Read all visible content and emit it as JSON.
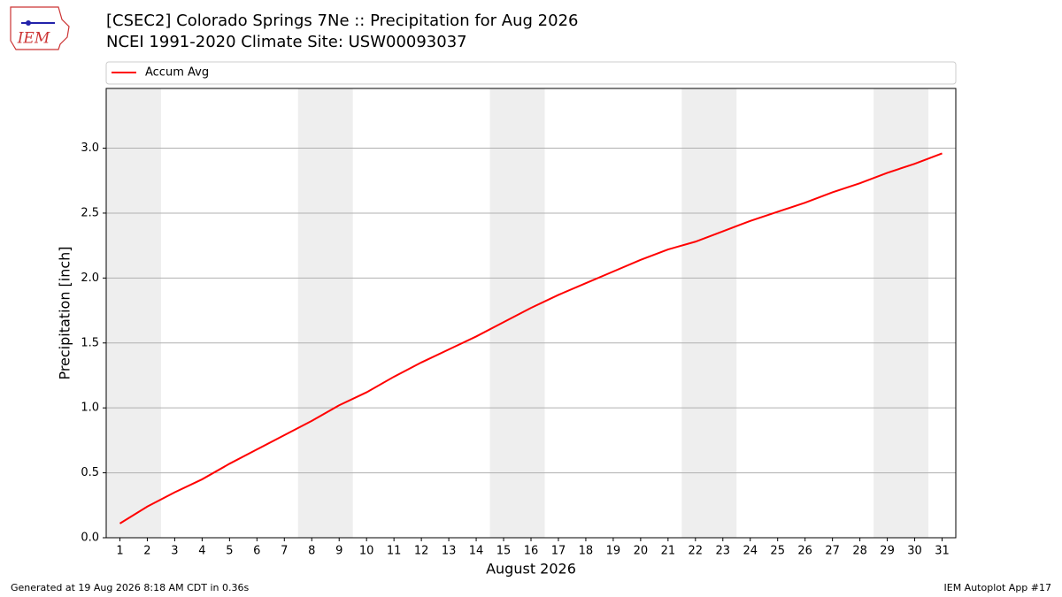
{
  "logo": "IEM",
  "footer": {
    "left": "Generated at 19 Aug 2026 8:18 AM CDT in 0.36s",
    "right": "IEM Autoplot App #17"
  },
  "chart_data": {
    "type": "line",
    "title": "[CSEC2] Colorado Springs 7Ne :: Precipitation for Aug 2026",
    "subtitle": "NCEI 1991-2020 Climate Site: USW00093037",
    "x_label": "August 2026",
    "y_label": "Precipitation [inch]",
    "x": [
      1,
      2,
      3,
      4,
      5,
      6,
      7,
      8,
      9,
      10,
      11,
      12,
      13,
      14,
      15,
      16,
      17,
      18,
      19,
      20,
      21,
      22,
      23,
      24,
      25,
      26,
      27,
      28,
      29,
      30,
      31
    ],
    "series": [
      {
        "name": "Accum Avg",
        "color": "#ff0000",
        "values": [
          0.11,
          0.24,
          0.35,
          0.45,
          0.57,
          0.68,
          0.79,
          0.9,
          1.02,
          1.12,
          1.24,
          1.35,
          1.45,
          1.55,
          1.66,
          1.77,
          1.87,
          1.96,
          2.05,
          2.14,
          2.22,
          2.28,
          2.36,
          2.44,
          2.51,
          2.58,
          2.66,
          2.73,
          2.81,
          2.88,
          2.96
        ]
      }
    ],
    "xlim": [
      0.5,
      31.5
    ],
    "xticks": [
      1,
      2,
      3,
      4,
      5,
      6,
      7,
      8,
      9,
      10,
      11,
      12,
      13,
      14,
      15,
      16,
      17,
      18,
      19,
      20,
      21,
      22,
      23,
      24,
      25,
      26,
      27,
      28,
      29,
      30,
      31
    ],
    "ylim": [
      0,
      3.46
    ],
    "yticks": [
      {
        "value": 0,
        "label": "0.0"
      },
      0.5,
      {
        "value": 1,
        "label": "1.0"
      },
      1.5,
      {
        "value": 2,
        "label": "2.0"
      },
      2.5,
      {
        "value": 3,
        "label": "3.0"
      }
    ],
    "grid": true,
    "legend": "top",
    "weekend_spans": [
      [
        0.5,
        2.5
      ],
      [
        7.5,
        9.5
      ],
      [
        14.5,
        16.5
      ],
      [
        21.5,
        23.5
      ],
      [
        28.5,
        30.5
      ]
    ],
    "shade_color": "#eeeeee"
  }
}
